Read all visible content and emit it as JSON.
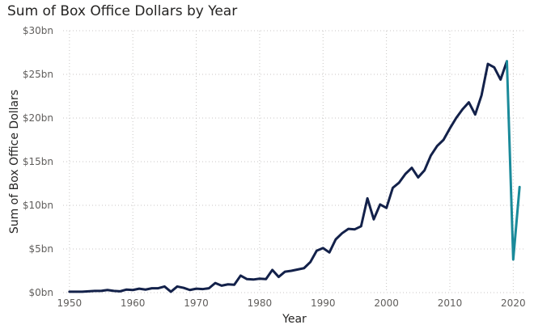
{
  "chart_data": {
    "type": "line",
    "title": "Sum of Box Office Dollars by Year",
    "xlabel": "Year",
    "ylabel": "Sum of Box Office Dollars",
    "xlim": [
      1949,
      2022
    ],
    "ylim": [
      0,
      30
    ],
    "x_ticks": [
      {
        "value": 1950,
        "label": "1950"
      },
      {
        "value": 1960,
        "label": "1960"
      },
      {
        "value": 1970,
        "label": "1970"
      },
      {
        "value": 1980,
        "label": "1980"
      },
      {
        "value": 1990,
        "label": "1990"
      },
      {
        "value": 2000,
        "label": "2000"
      },
      {
        "value": 2010,
        "label": "2010"
      },
      {
        "value": 2020,
        "label": "2020"
      }
    ],
    "y_ticks": [
      {
        "value": 0,
        "label": "$0bn"
      },
      {
        "value": 5,
        "label": "$5bn"
      },
      {
        "value": 10,
        "label": "$10bn"
      },
      {
        "value": 15,
        "label": "$15bn"
      },
      {
        "value": 20,
        "label": "$20bn"
      },
      {
        "value": 25,
        "label": "$25bn"
      },
      {
        "value": 30,
        "label": "$30bn"
      }
    ],
    "grid": true,
    "series": [
      {
        "color": "#13214a",
        "points": [
          [
            1950,
            0.1
          ],
          [
            1951,
            0.1
          ],
          [
            1952,
            0.1
          ],
          [
            1953,
            0.15
          ],
          [
            1954,
            0.2
          ],
          [
            1955,
            0.2
          ],
          [
            1956,
            0.3
          ],
          [
            1957,
            0.2
          ],
          [
            1958,
            0.15
          ],
          [
            1959,
            0.35
          ],
          [
            1960,
            0.3
          ],
          [
            1961,
            0.45
          ],
          [
            1962,
            0.35
          ],
          [
            1963,
            0.5
          ],
          [
            1964,
            0.5
          ],
          [
            1965,
            0.7
          ],
          [
            1966,
            0.1
          ],
          [
            1967,
            0.7
          ],
          [
            1968,
            0.55
          ],
          [
            1969,
            0.3
          ],
          [
            1970,
            0.45
          ],
          [
            1971,
            0.4
          ],
          [
            1972,
            0.5
          ],
          [
            1973,
            1.1
          ],
          [
            1974,
            0.8
          ],
          [
            1975,
            0.95
          ],
          [
            1976,
            0.9
          ],
          [
            1977,
            1.95
          ],
          [
            1978,
            1.55
          ],
          [
            1979,
            1.5
          ],
          [
            1980,
            1.6
          ],
          [
            1981,
            1.55
          ],
          [
            1982,
            2.6
          ],
          [
            1983,
            1.8
          ],
          [
            1984,
            2.4
          ],
          [
            1985,
            2.5
          ],
          [
            1986,
            2.65
          ],
          [
            1987,
            2.8
          ],
          [
            1988,
            3.5
          ],
          [
            1989,
            4.8
          ],
          [
            1990,
            5.1
          ],
          [
            1991,
            4.6
          ],
          [
            1992,
            6.1
          ],
          [
            1993,
            6.8
          ],
          [
            1994,
            7.3
          ],
          [
            1995,
            7.25
          ],
          [
            1996,
            7.6
          ],
          [
            1997,
            10.8
          ],
          [
            1998,
            8.4
          ],
          [
            1999,
            10.1
          ],
          [
            2000,
            9.7
          ],
          [
            2001,
            12.0
          ],
          [
            2002,
            12.6
          ],
          [
            2003,
            13.6
          ],
          [
            2004,
            14.3
          ],
          [
            2005,
            13.2
          ],
          [
            2006,
            14.0
          ],
          [
            2007,
            15.7
          ],
          [
            2008,
            16.8
          ],
          [
            2009,
            17.5
          ],
          [
            2010,
            18.8
          ],
          [
            2011,
            20.0
          ],
          [
            2012,
            21.0
          ],
          [
            2013,
            21.8
          ],
          [
            2014,
            20.4
          ],
          [
            2015,
            22.6
          ],
          [
            2016,
            26.2
          ],
          [
            2017,
            25.8
          ],
          [
            2018,
            24.4
          ],
          [
            2019,
            26.5
          ]
        ]
      },
      {
        "color": "#1a8a9a",
        "points": [
          [
            2019,
            26.5
          ],
          [
            2020,
            3.8
          ],
          [
            2021,
            12.1
          ]
        ]
      }
    ]
  }
}
